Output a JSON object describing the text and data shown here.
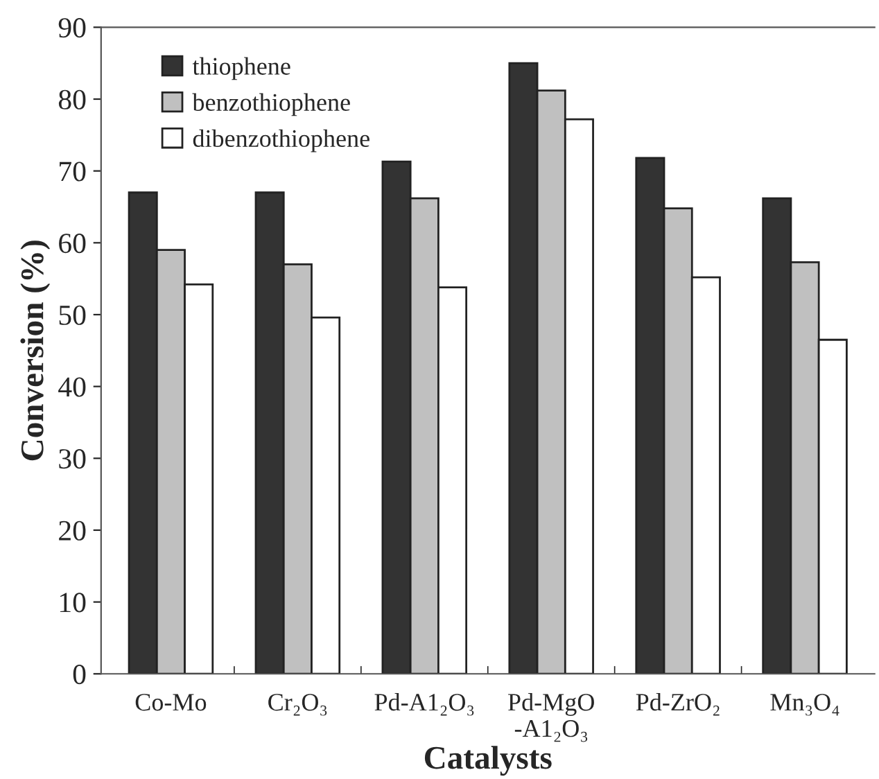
{
  "chart_data": {
    "type": "bar",
    "xlabel": "Catalysts",
    "ylabel": "Conversion (%)",
    "categories": [
      "Co-Mo",
      "Cr₂O₃",
      "Pd-A1₂O₃",
      "Pd-MgO\n-A1₂O₃",
      "Pd-ZrO₂",
      "Mn₃O₄"
    ],
    "series": [
      {
        "name": "thiophene",
        "color": "#333333",
        "values": [
          67,
          67,
          71.3,
          85,
          71.8,
          66.2
        ]
      },
      {
        "name": "benzothiophene",
        "color": "#c0c0c0",
        "values": [
          59,
          57,
          66.2,
          81.2,
          64.8,
          57.3
        ]
      },
      {
        "name": "dibenzothiophene",
        "color": "#ffffff",
        "values": [
          54.2,
          49.6,
          53.8,
          77.2,
          55.2,
          46.5
        ]
      }
    ],
    "ylim": [
      0,
      90
    ],
    "yticks": [
      0,
      10,
      20,
      30,
      40,
      50,
      60,
      70,
      80,
      90
    ],
    "grid": false,
    "legend": "top left"
  }
}
